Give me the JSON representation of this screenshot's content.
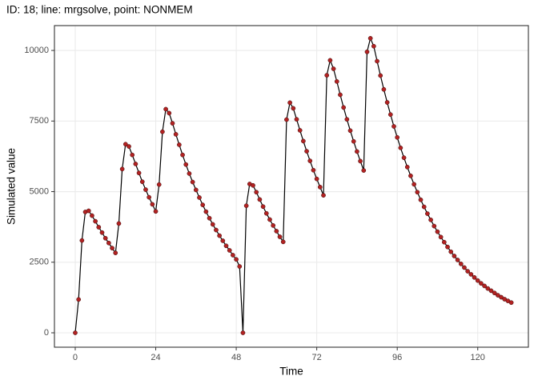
{
  "chart_data": {
    "type": "line",
    "title": "ID: 18; line: mrgsolve, point: NONMEM",
    "xlabel": "Time",
    "ylabel": "Simulated value",
    "x": [
      0,
      1,
      2,
      3,
      4,
      5,
      6,
      7,
      8,
      9,
      10,
      11,
      12,
      13,
      14,
      15,
      16,
      17,
      18,
      19,
      20,
      21,
      22,
      23,
      24,
      25,
      26,
      27,
      28,
      29,
      30,
      31,
      32,
      33,
      34,
      35,
      36,
      37,
      38,
      39,
      40,
      41,
      42,
      43,
      44,
      45,
      46,
      47,
      48,
      49,
      50,
      51,
      52,
      53,
      54,
      55,
      56,
      57,
      58,
      59,
      60,
      61,
      62,
      63,
      64,
      65,
      66,
      67,
      68,
      69,
      70,
      71,
      72,
      73,
      74,
      75,
      76,
      77,
      78,
      79,
      80,
      81,
      82,
      83,
      84,
      85,
      86,
      87,
      88,
      89,
      90,
      91,
      92,
      93,
      94,
      95,
      96,
      97,
      98,
      99,
      100,
      101,
      102,
      103,
      104,
      105,
      106,
      107,
      108,
      109,
      110,
      111,
      112,
      113,
      114,
      115,
      116,
      117,
      118,
      119,
      120,
      121,
      122,
      123,
      124,
      125,
      126,
      127,
      128,
      129,
      130
    ],
    "series": [
      {
        "line_color": "#000000",
        "point_color": "#b22222",
        "values": [
          0,
          1180,
          3270,
          4280,
          4320,
          4150,
          3950,
          3740,
          3550,
          3350,
          3180,
          3000,
          2830,
          3870,
          5800,
          6680,
          6600,
          6300,
          5980,
          5660,
          5350,
          5070,
          4800,
          4550,
          4300,
          5250,
          7120,
          7920,
          7780,
          7420,
          7030,
          6660,
          6300,
          5960,
          5640,
          5340,
          5060,
          4790,
          4530,
          4290,
          4060,
          3840,
          3640,
          3440,
          3260,
          3080,
          2920,
          2750,
          2600,
          2350,
          0,
          4500,
          5270,
          5220,
          4980,
          4720,
          4470,
          4230,
          4010,
          3800,
          3600,
          3400,
          3220,
          7550,
          8150,
          7950,
          7560,
          7170,
          6790,
          6430,
          6090,
          5760,
          5450,
          5160,
          4870,
          9120,
          9650,
          9350,
          8900,
          8430,
          7980,
          7560,
          7160,
          6780,
          6420,
          6080,
          5750,
          9950,
          10430,
          10150,
          9620,
          9110,
          8620,
          8160,
          7730,
          7310,
          6920,
          6550,
          6200,
          5870,
          5560,
          5260,
          4980,
          4710,
          4460,
          4220,
          4000,
          3780,
          3580,
          3390,
          3210,
          3040,
          2870,
          2720,
          2580,
          2440,
          2310,
          2180,
          2070,
          1960,
          1850,
          1750,
          1660,
          1570,
          1490,
          1410,
          1330,
          1260,
          1190,
          1130,
          1070
        ]
      }
    ],
    "xlim": [
      -6.2,
      135.1
    ],
    "ylim": [
      -510,
      10880
    ],
    "xticks": [
      0,
      24,
      48,
      72,
      96,
      120
    ],
    "yticks": [
      0,
      2500,
      5000,
      7500,
      10000
    ],
    "grid": true
  }
}
